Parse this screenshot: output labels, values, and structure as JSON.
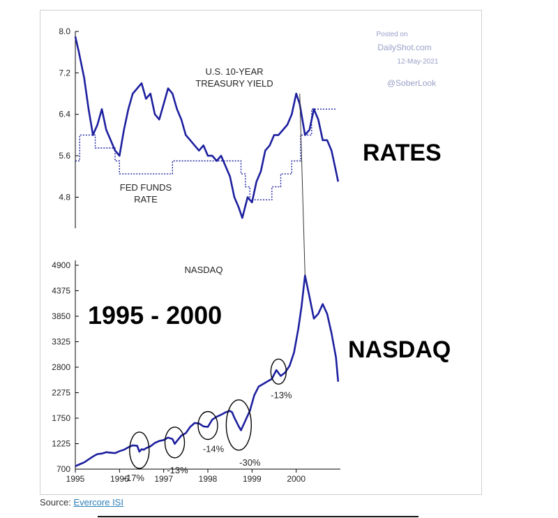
{
  "labels": {
    "treasury_line1": "U.S. 10-YEAR",
    "treasury_line2": "TREASURY YIELD",
    "fed_line1": "FED FUNDS",
    "fed_line2": "RATE",
    "nasdaq_small": "NASDAQ",
    "rates_big": "RATES",
    "nasdaq_big": "NASDAQ",
    "period_big": "1995 - 2000"
  },
  "watermark": {
    "line1": "Posted on",
    "line2": "DailyShot.com",
    "line3": "12-May-2021",
    "line4": "@SoberLook"
  },
  "source": {
    "prefix": "Source:",
    "link": "Evercore ISI"
  },
  "colors": {
    "line": "#1c1f9e",
    "accent_text": "#000000"
  },
  "chart_data": [
    {
      "type": "line",
      "series": [
        {
          "name": "U.S. 10-YEAR TREASURY YIELD",
          "style": "solid",
          "x": [
            1995.0,
            1995.08,
            1995.2,
            1995.3,
            1995.4,
            1995.5,
            1995.6,
            1995.7,
            1995.8,
            1995.9,
            1996.0,
            1996.1,
            1996.2,
            1996.3,
            1996.4,
            1996.5,
            1996.6,
            1996.7,
            1996.8,
            1996.9,
            1997.0,
            1997.1,
            1997.2,
            1997.3,
            1997.4,
            1997.5,
            1997.6,
            1997.7,
            1997.8,
            1997.9,
            1998.0,
            1998.1,
            1998.2,
            1998.3,
            1998.4,
            1998.5,
            1998.6,
            1998.7,
            1998.78,
            1998.9,
            1999.0,
            1999.1,
            1999.2,
            1999.3,
            1999.4,
            1999.5,
            1999.6,
            1999.7,
            1999.8,
            1999.9,
            2000.0,
            2000.08,
            2000.2,
            2000.3,
            2000.4,
            2000.5,
            2000.6,
            2000.7,
            2000.8,
            2000.9,
            2000.95
          ],
          "y": [
            7.9,
            7.6,
            7.1,
            6.5,
            6.0,
            6.2,
            6.5,
            6.1,
            5.9,
            5.7,
            5.6,
            6.1,
            6.5,
            6.8,
            6.9,
            7.0,
            6.7,
            6.8,
            6.4,
            6.3,
            6.6,
            6.9,
            6.8,
            6.5,
            6.3,
            6.0,
            5.9,
            5.8,
            5.7,
            5.8,
            5.6,
            5.6,
            5.5,
            5.6,
            5.4,
            5.2,
            4.8,
            4.6,
            4.4,
            4.8,
            4.7,
            5.1,
            5.3,
            5.7,
            5.8,
            6.0,
            6.0,
            6.1,
            6.2,
            6.4,
            6.8,
            6.6,
            6.0,
            6.1,
            6.5,
            6.3,
            5.9,
            5.9,
            5.7,
            5.3,
            5.1
          ]
        },
        {
          "name": "FED FUNDS RATE",
          "style": "dotted",
          "x": [
            1995.0,
            1995.1,
            1995.1,
            1995.45,
            1995.45,
            1995.9,
            1995.9,
            1996.0,
            1996.0,
            1997.2,
            1997.2,
            1998.75,
            1998.75,
            1998.85,
            1998.85,
            1998.95,
            1998.95,
            1999.45,
            1999.45,
            1999.65,
            1999.65,
            1999.9,
            1999.9,
            2000.1,
            2000.1,
            2000.35,
            2000.35,
            2000.9
          ],
          "y": [
            5.5,
            5.5,
            6.0,
            6.0,
            5.75,
            5.75,
            5.5,
            5.5,
            5.25,
            5.25,
            5.5,
            5.5,
            5.25,
            5.25,
            5.0,
            5.0,
            4.75,
            4.75,
            5.0,
            5.0,
            5.25,
            5.25,
            5.5,
            5.5,
            6.0,
            6.0,
            6.5,
            6.5
          ]
        }
      ],
      "ylim": [
        4.2,
        8.0
      ],
      "xlim": [
        1995,
        2001
      ],
      "yticks": [
        "8.0",
        "7.2",
        "6.4",
        "5.6",
        "4.8"
      ],
      "ytick_values": [
        8.0,
        7.2,
        6.4,
        5.6,
        4.8
      ]
    },
    {
      "type": "line",
      "series": [
        {
          "name": "NASDAQ",
          "style": "solid",
          "x": [
            1995.0,
            1995.1,
            1995.2,
            1995.3,
            1995.4,
            1995.5,
            1995.6,
            1995.7,
            1995.8,
            1995.9,
            1996.0,
            1996.1,
            1996.2,
            1996.3,
            1996.4,
            1996.45,
            1996.5,
            1996.55,
            1996.6,
            1996.7,
            1996.8,
            1996.9,
            1997.0,
            1997.1,
            1997.2,
            1997.25,
            1997.3,
            1997.4,
            1997.5,
            1997.6,
            1997.7,
            1997.8,
            1997.9,
            1998.0,
            1998.1,
            1998.2,
            1998.3,
            1998.4,
            1998.5,
            1998.55,
            1998.6,
            1998.7,
            1998.75,
            1998.85,
            1998.95,
            1999.05,
            1999.15,
            1999.3,
            1999.45,
            1999.55,
            1999.65,
            1999.75,
            1999.85,
            1999.95,
            2000.05,
            2000.12,
            2000.2,
            2000.3,
            2000.4,
            2000.5,
            2000.6,
            2000.7,
            2000.8,
            2000.9,
            2000.95
          ],
          "y": [
            760,
            800,
            840,
            900,
            960,
            1010,
            1020,
            1050,
            1040,
            1030,
            1070,
            1100,
            1150,
            1190,
            1180,
            1060,
            1110,
            1100,
            1130,
            1170,
            1240,
            1280,
            1300,
            1350,
            1320,
            1220,
            1280,
            1390,
            1440,
            1570,
            1650,
            1640,
            1580,
            1570,
            1720,
            1780,
            1820,
            1870,
            1900,
            1870,
            1760,
            1580,
            1500,
            1700,
            1900,
            2220,
            2400,
            2480,
            2560,
            2740,
            2620,
            2690,
            2830,
            3100,
            3600,
            4050,
            4690,
            4250,
            3800,
            3900,
            4100,
            3900,
            3500,
            3000,
            2500
          ],
          "annotations": [
            {
              "text": "-17%",
              "x": 1996.45
            },
            {
              "text": "-13%",
              "x": 1997.25
            },
            {
              "text": "-14%",
              "x": 1998.0
            },
            {
              "text": "-30%",
              "x": 1998.7
            },
            {
              "text": "-13%",
              "x": 1999.6
            }
          ]
        }
      ],
      "ylim": [
        700,
        5000
      ],
      "xlim": [
        1995,
        2001
      ],
      "yticks": [
        "4900",
        "4375",
        "3850",
        "3325",
        "2800",
        "2275",
        "1750",
        "1225",
        "700"
      ],
      "ytick_values": [
        4900,
        4375,
        3850,
        3325,
        2800,
        2275,
        1750,
        1225,
        700
      ],
      "xticks": [
        "1995",
        "1996",
        "1997",
        "1998",
        "1999",
        "2000"
      ],
      "xtick_values": [
        1995,
        1996,
        1997,
        1998,
        1999,
        2000
      ]
    }
  ]
}
